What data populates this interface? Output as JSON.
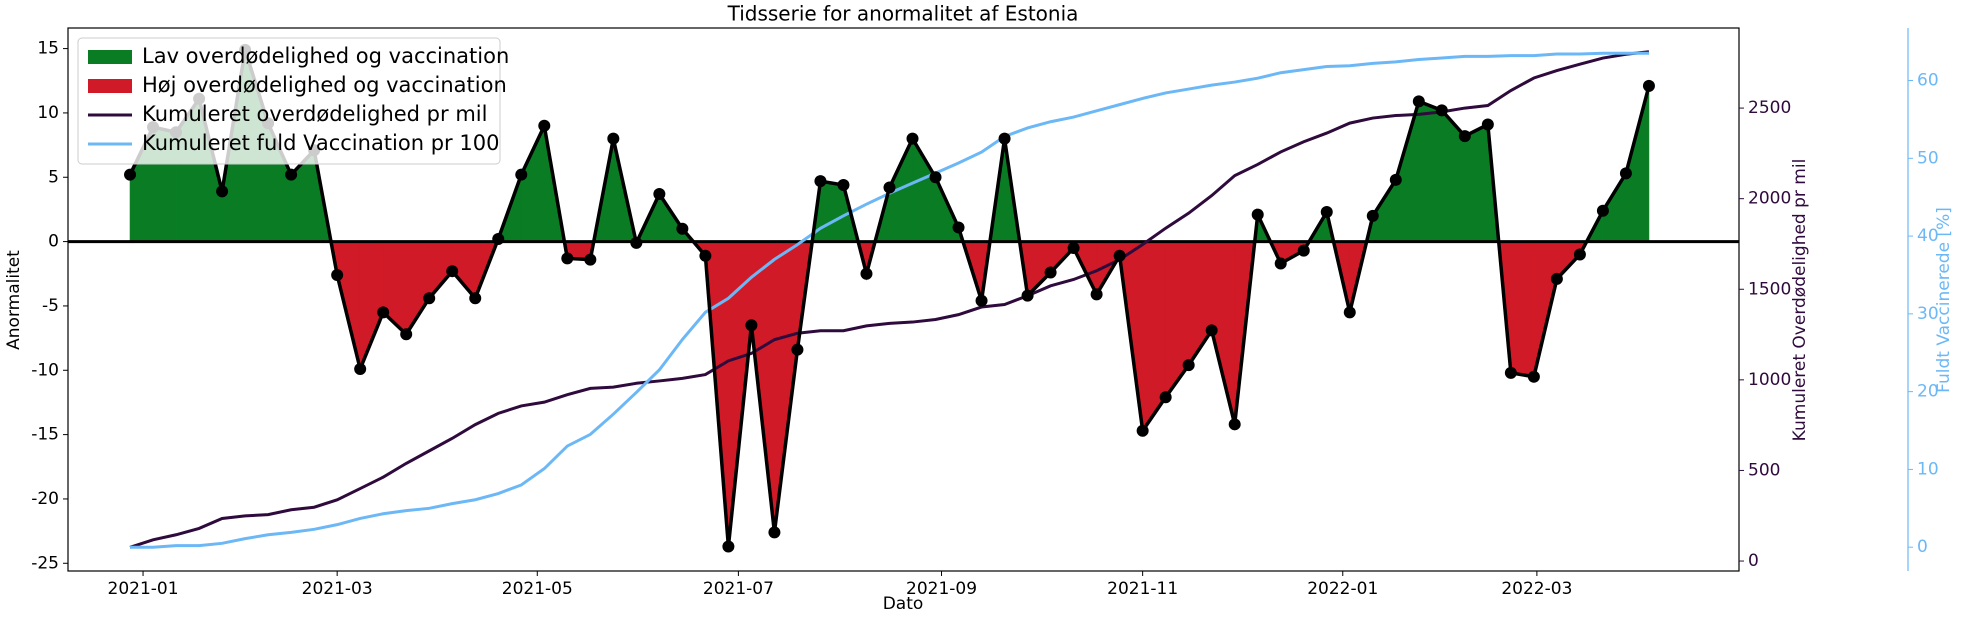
{
  "chart_data": {
    "type": "line",
    "title": "Tidsserie for anormalitet af Estonia",
    "xlabel": "Dato",
    "ylabel": "Anormalitet",
    "y2label": "Kumuleret Overdødelighed pr mil",
    "y3label": "Fuldt Vaccinerede [%]",
    "legend": "upper left",
    "xlim": [
      -0.75,
      15.95
    ],
    "xticks": [
      {
        "value": 0,
        "label": "2021-01"
      },
      {
        "value": 1.94,
        "label": "2021-03"
      },
      {
        "value": 3.94,
        "label": "2021-05"
      },
      {
        "value": 5.95,
        "label": "2021-07"
      },
      {
        "value": 7.98,
        "label": "2021-09"
      },
      {
        "value": 9.99,
        "label": "2021-11"
      },
      {
        "value": 11.99,
        "label": "2022-01"
      },
      {
        "value": 13.93,
        "label": "2022-03"
      }
    ],
    "ylim": [
      -25.6,
      16.6
    ],
    "yticks": [
      -25,
      -20,
      -15,
      -10,
      -5,
      0,
      5,
      10,
      15
    ],
    "y2lim": [
      -55,
      2942
    ],
    "y2ticks": [
      0,
      500,
      1000,
      1500,
      2000,
      2500
    ],
    "y3lim": [
      -3.06,
      66.75
    ],
    "y3ticks": [
      0,
      10,
      20,
      30,
      40,
      50,
      60
    ],
    "x": [
      -0.13,
      0.1,
      0.33,
      0.56,
      0.79,
      1.02,
      1.25,
      1.48,
      1.71,
      1.94,
      2.17,
      2.4,
      2.63,
      2.86,
      3.09,
      3.32,
      3.55,
      3.78,
      4.01,
      4.24,
      4.47,
      4.7,
      4.93,
      5.16,
      5.39,
      5.62,
      5.85,
      6.08,
      6.31,
      6.54,
      6.77,
      7.0,
      7.23,
      7.46,
      7.69,
      7.92,
      8.15,
      8.38,
      8.61,
      8.84,
      9.07,
      9.3,
      9.53,
      9.76,
      9.99,
      10.22,
      10.45,
      10.68,
      10.91,
      11.14,
      11.37,
      11.6,
      11.83,
      12.06,
      12.29,
      12.52,
      12.75,
      12.98,
      13.21,
      13.44,
      13.67,
      13.9,
      14.13,
      14.36,
      14.59,
      14.82,
      15.05
    ],
    "anomaly": {
      "color": "#000000",
      "values": [
        5.2,
        8.9,
        8.5,
        11.1,
        3.9,
        14.9,
        9.2,
        5.2,
        7.1,
        -2.6,
        -9.9,
        -5.5,
        -7.2,
        -4.4,
        -2.3,
        -4.4,
        0.2,
        5.2,
        9.0,
        -1.3,
        -1.4,
        8.0,
        -0.1,
        3.7,
        1.0,
        -1.1,
        -23.7,
        -6.5,
        -22.6,
        -8.4,
        4.7,
        4.4,
        -2.5,
        4.2,
        8.0,
        5.0,
        1.1,
        -4.6,
        8.0,
        -4.2,
        -2.4,
        -0.5,
        -4.1,
        -1.1,
        -14.7,
        -12.1,
        -9.6,
        -6.9,
        -14.2,
        2.1,
        -1.7,
        -0.7,
        2.3,
        -5.5,
        2.0,
        4.8,
        10.9,
        10.2,
        8.2,
        9.1,
        -10.2,
        -10.5,
        -2.9,
        -1.0,
        2.4,
        5.3,
        12.1
      ],
      "positive": {
        "name": "Lav overdødelighed og vaccination",
        "color": "#0a7d24"
      },
      "negative": {
        "name": "Høj overdødelighed og vaccination",
        "color": "#d11a27"
      }
    },
    "series": [
      {
        "name": "Kumuleret overdødelighed pr mil",
        "color": "#2f0a3d",
        "axis": "y2",
        "values": [
          76,
          117,
          145,
          180,
          235,
          249,
          256,
          283,
          297,
          338,
          400,
          463,
          539,
          608,
          677,
          753,
          815,
          856,
          877,
          918,
          953,
          960,
          981,
          994,
          1008,
          1029,
          1105,
          1146,
          1222,
          1257,
          1271,
          1271,
          1298,
          1312,
          1319,
          1333,
          1360,
          1402,
          1416,
          1464,
          1519,
          1554,
          1602,
          1664,
          1747,
          1837,
          1920,
          2017,
          2127,
          2189,
          2258,
          2314,
          2362,
          2417,
          2445,
          2459,
          2465,
          2479,
          2500,
          2514,
          2597,
          2666,
          2707,
          2742,
          2776,
          2797,
          2811
        ]
      },
      {
        "name": "Kumuleret fuld Vaccination pr 100",
        "color": "#6cb8f6",
        "axis": "y3",
        "values": [
          0.0,
          0.0,
          0.2,
          0.2,
          0.5,
          1.1,
          1.6,
          1.9,
          2.3,
          2.9,
          3.7,
          4.3,
          4.7,
          5.0,
          5.6,
          6.1,
          6.9,
          8.0,
          10.1,
          13.0,
          14.5,
          17.1,
          19.9,
          22.8,
          26.7,
          30.2,
          32.0,
          34.7,
          37.0,
          38.9,
          41.0,
          42.6,
          44.1,
          45.5,
          46.8,
          48.1,
          49.4,
          50.8,
          52.8,
          53.9,
          54.7,
          55.3,
          56.1,
          56.9,
          57.7,
          58.4,
          58.9,
          59.4,
          59.8,
          60.3,
          61.0,
          61.4,
          61.8,
          61.9,
          62.2,
          62.4,
          62.7,
          62.9,
          63.1,
          63.1,
          63.2,
          63.2,
          63.4,
          63.4,
          63.5,
          63.5,
          63.5
        ]
      }
    ]
  }
}
